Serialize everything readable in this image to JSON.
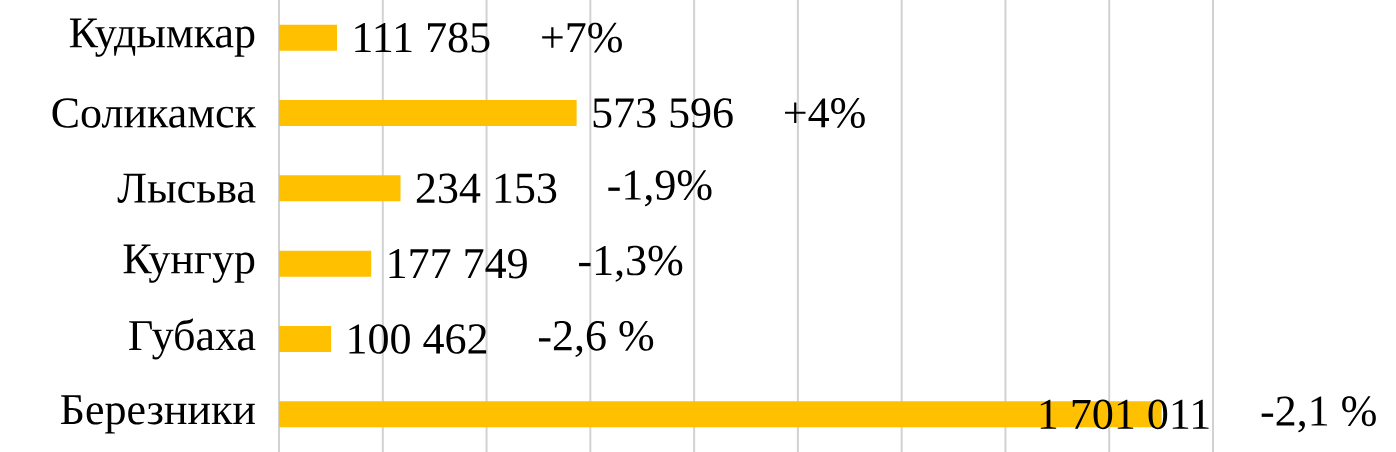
{
  "chart_data": {
    "type": "bar",
    "orientation": "horizontal",
    "categories": [
      "Кудымкар",
      "Соликамск",
      "Лысьва",
      "Кунгур",
      "Губаха",
      "Березники"
    ],
    "values": [
      111785,
      573596,
      234153,
      177749,
      100462,
      1701011
    ],
    "value_labels": [
      "111 785",
      "573 596",
      "234 153",
      "177 749",
      "100 462",
      "1 701 011"
    ],
    "color": "#ffc000",
    "xlim": [
      0,
      1800000
    ],
    "xticks": [
      {
        "value": 0,
        "label": null
      },
      {
        "value": 200000,
        "label": null
      },
      {
        "value": 400000,
        "label": null
      },
      {
        "value": 600000,
        "label": null
      },
      {
        "value": 800000,
        "label": null
      },
      {
        "value": 1000000,
        "label": null
      },
      {
        "value": 1200000,
        "label": null
      },
      {
        "value": 1400000,
        "label": null
      },
      {
        "value": 1600000,
        "label": null
      },
      {
        "value": 1800000,
        "label": null
      }
    ],
    "grid": "x",
    "tick_labels": "y",
    "annotations": [
      "+7%",
      "+4%",
      "-1,9%",
      "-1,3%",
      "-2,6 %",
      "-2,1 %"
    ]
  }
}
